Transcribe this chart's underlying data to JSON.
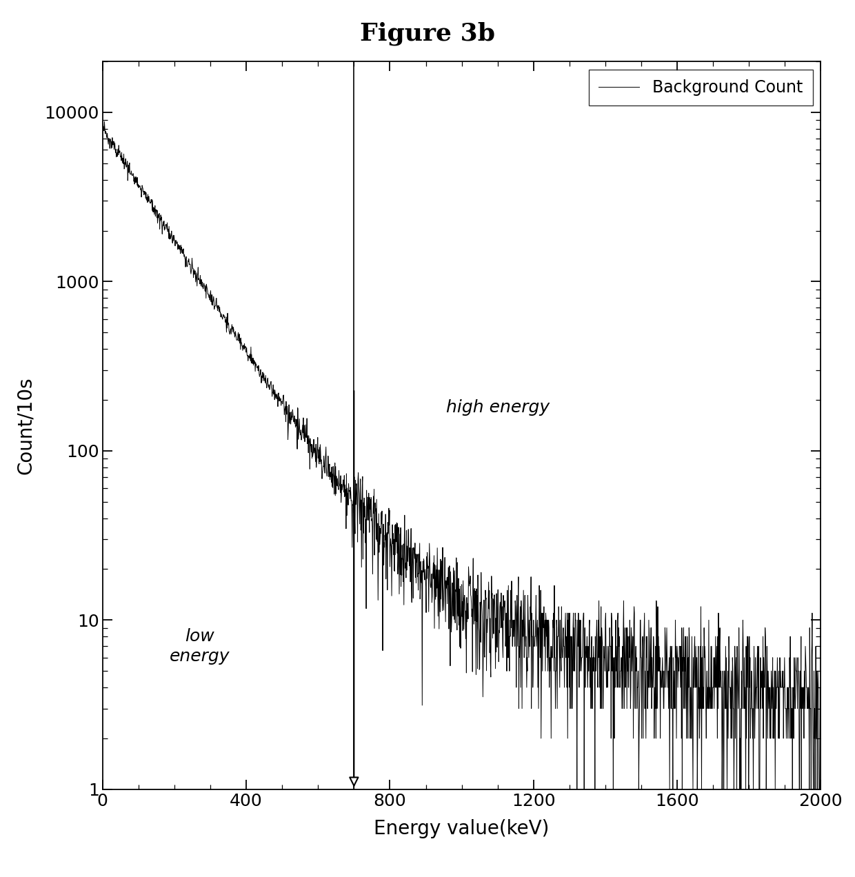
{
  "title": "Figure 3b",
  "xlabel": "Energy value(keV)",
  "ylabel": "Count/10s",
  "xmin": 0,
  "xmax": 2000,
  "ymin": 1,
  "ymax": 20000,
  "vline_x": 700,
  "legend_label": "Background Count",
  "low_energy_text": "low\nenergy",
  "high_energy_text": "high energy",
  "low_energy_x": 270,
  "low_energy_y": 7.0,
  "high_energy_x": 1100,
  "high_energy_y": 180,
  "line_color": "#000000",
  "background_color": "#ffffff",
  "title_fontsize": 26,
  "label_fontsize": 20,
  "tick_fontsize": 18,
  "annotation_fontsize": 18,
  "xticks": [
    0,
    400,
    800,
    1200,
    1600,
    2000
  ],
  "ytick_labels": [
    "1",
    "10",
    "100",
    "1000",
    "10000"
  ],
  "ytick_values": [
    1,
    10,
    100,
    1000,
    10000
  ]
}
